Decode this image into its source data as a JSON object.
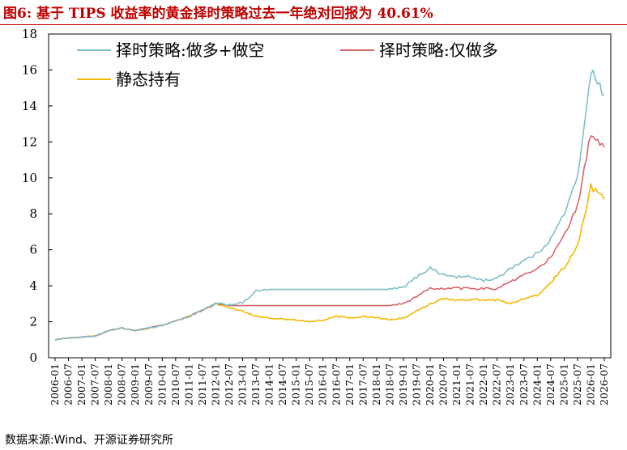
{
  "figure": {
    "title": "图6:  基于 TIPS 收益率的黄金择时策略过去一年绝对回报为 40.61%",
    "source": "数据来源:Wind、开源证券研究所"
  },
  "chart_data": {
    "type": "line",
    "title": "",
    "xlabel": "",
    "ylabel": "",
    "ylim": [
      0,
      18
    ],
    "yticks": [
      0,
      2,
      4,
      6,
      8,
      10,
      12,
      14,
      16,
      18
    ],
    "grid": false,
    "legend_position": "top",
    "x": [
      "2006-01",
      "2006-07",
      "2007-01",
      "2007-07",
      "2008-01",
      "2008-07",
      "2009-01",
      "2009-07",
      "2010-01",
      "2010-07",
      "2011-01",
      "2011-07",
      "2012-01",
      "2012-07",
      "2013-01",
      "2013-07",
      "2014-01",
      "2014-07",
      "2015-01",
      "2015-07",
      "2016-01",
      "2016-07",
      "2017-01",
      "2017-07",
      "2018-01",
      "2018-07",
      "2019-01",
      "2019-07",
      "2020-01",
      "2020-07",
      "2021-01",
      "2021-07",
      "2022-01",
      "2022-07",
      "2023-01",
      "2023-07",
      "2024-01",
      "2024-07",
      "2025-01",
      "2025-07",
      "2026-01",
      "2026-07"
    ],
    "series": [
      {
        "name": "择时策略:做多+做空",
        "color": "#7fbfc8",
        "values": [
          1.0,
          1.1,
          1.15,
          1.2,
          1.5,
          1.65,
          1.5,
          1.65,
          1.8,
          2.05,
          2.3,
          2.65,
          3.0,
          2.95,
          3.05,
          3.7,
          3.8,
          3.8,
          3.8,
          3.8,
          3.8,
          3.8,
          3.8,
          3.8,
          3.8,
          3.8,
          3.9,
          4.5,
          5.0,
          4.6,
          4.5,
          4.5,
          4.3,
          4.4,
          5.0,
          5.4,
          5.8,
          6.6,
          8.0,
          10.0,
          16.0,
          14.6
        ]
      },
      {
        "name": "择时策略:仅做多",
        "color": "#d9666b",
        "values": [
          1.0,
          1.1,
          1.15,
          1.2,
          1.5,
          1.65,
          1.5,
          1.65,
          1.8,
          2.05,
          2.3,
          2.65,
          3.0,
          2.9,
          2.9,
          2.9,
          2.9,
          2.9,
          2.9,
          2.9,
          2.9,
          2.9,
          2.9,
          2.9,
          2.9,
          2.9,
          3.0,
          3.4,
          3.85,
          3.85,
          3.85,
          3.85,
          3.85,
          3.85,
          4.2,
          4.6,
          4.9,
          5.6,
          6.8,
          8.4,
          12.5,
          11.7
        ]
      },
      {
        "name": "静态持有",
        "color": "#f5b800",
        "values": [
          1.0,
          1.1,
          1.15,
          1.2,
          1.5,
          1.65,
          1.5,
          1.65,
          1.8,
          2.05,
          2.3,
          2.65,
          3.0,
          2.8,
          2.6,
          2.3,
          2.2,
          2.15,
          2.1,
          2.0,
          2.1,
          2.3,
          2.2,
          2.3,
          2.25,
          2.1,
          2.2,
          2.6,
          3.0,
          3.3,
          3.2,
          3.25,
          3.2,
          3.2,
          3.0,
          3.3,
          3.5,
          4.2,
          5.0,
          6.2,
          9.5,
          8.8
        ]
      }
    ]
  }
}
